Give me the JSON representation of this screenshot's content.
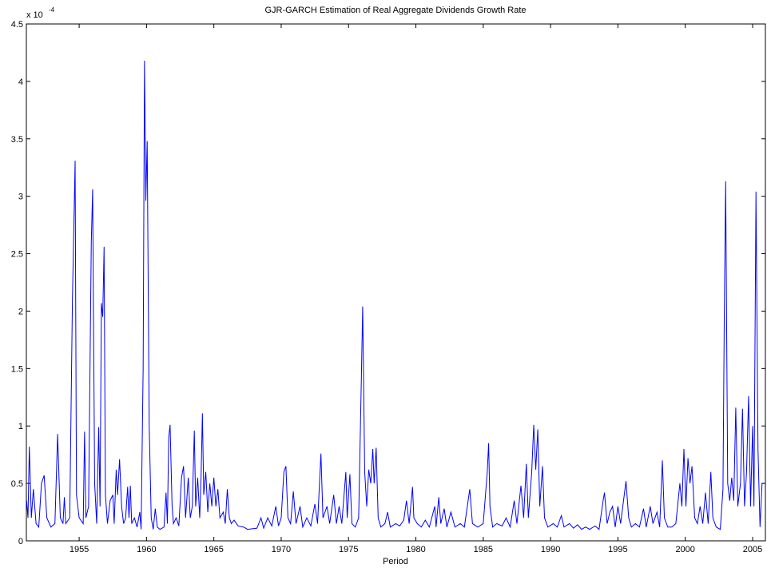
{
  "chart_data": {
    "type": "line",
    "title": "GJR-GARCH Estimation of Real Aggregate Dividends Growth Rate",
    "x_label": "Period",
    "y_multiplier_base": "x 10",
    "y_multiplier_exponent": "-4",
    "color": "#0000ff",
    "xlim": [
      1951.08,
      2005.95
    ],
    "ylim": [
      0,
      4.5
    ],
    "xticks": [
      1955,
      1960,
      1965,
      1970,
      1975,
      1980,
      1985,
      1990,
      1995,
      2000,
      2005
    ],
    "yticks": [
      0,
      0.5,
      1,
      1.5,
      2,
      2.5,
      3,
      3.5,
      4,
      4.5
    ],
    "x": [
      1951.1,
      1951.2,
      1951.3,
      1951.45,
      1951.6,
      1951.8,
      1952.0,
      1952.2,
      1952.4,
      1952.6,
      1952.9,
      1953.2,
      1953.4,
      1953.6,
      1953.8,
      1953.9,
      1954.0,
      1954.3,
      1954.5,
      1954.7,
      1954.8,
      1955.0,
      1955.3,
      1955.4,
      1955.5,
      1955.7,
      1955.9,
      1956.0,
      1956.15,
      1956.3,
      1956.45,
      1956.55,
      1956.65,
      1956.75,
      1956.85,
      1956.95,
      1957.1,
      1957.3,
      1957.5,
      1957.6,
      1957.75,
      1957.85,
      1958.0,
      1958.15,
      1958.3,
      1958.45,
      1958.6,
      1958.7,
      1958.8,
      1958.9,
      1959.1,
      1959.3,
      1959.5,
      1959.6,
      1959.75,
      1959.85,
      1959.95,
      1960.05,
      1960.2,
      1960.35,
      1960.5,
      1960.65,
      1960.8,
      1961.0,
      1961.3,
      1961.45,
      1961.55,
      1961.65,
      1961.75,
      1961.9,
      1962.0,
      1962.2,
      1962.4,
      1962.6,
      1962.75,
      1962.9,
      1963.1,
      1963.25,
      1963.4,
      1963.55,
      1963.65,
      1963.8,
      1963.95,
      1964.05,
      1964.15,
      1964.25,
      1964.4,
      1964.55,
      1964.7,
      1964.85,
      1965.0,
      1965.15,
      1965.3,
      1965.45,
      1965.7,
      1965.85,
      1966.0,
      1966.15,
      1966.3,
      1966.5,
      1966.8,
      1967.2,
      1967.5,
      1968.2,
      1968.5,
      1968.7,
      1969.0,
      1969.3,
      1969.6,
      1969.8,
      1970.0,
      1970.2,
      1970.35,
      1970.5,
      1970.7,
      1970.9,
      1971.1,
      1971.4,
      1971.6,
      1971.9,
      1972.2,
      1972.5,
      1972.7,
      1972.95,
      1973.1,
      1973.4,
      1973.6,
      1973.9,
      1974.1,
      1974.3,
      1974.5,
      1974.8,
      1974.9,
      1975.1,
      1975.25,
      1975.5,
      1975.75,
      1975.95,
      1976.05,
      1976.2,
      1976.35,
      1976.5,
      1976.65,
      1976.8,
      1976.9,
      1977.05,
      1977.2,
      1977.4,
      1977.7,
      1977.9,
      1978.1,
      1978.5,
      1978.8,
      1979.1,
      1979.3,
      1979.5,
      1979.75,
      1979.85,
      1980.1,
      1980.4,
      1980.7,
      1981.0,
      1981.4,
      1981.5,
      1981.7,
      1981.85,
      1982.1,
      1982.3,
      1982.6,
      1982.9,
      1983.3,
      1983.6,
      1984.0,
      1984.2,
      1984.6,
      1985.0,
      1985.3,
      1985.4,
      1985.5,
      1985.7,
      1986.0,
      1986.4,
      1986.7,
      1987.0,
      1987.3,
      1987.5,
      1987.8,
      1988.0,
      1988.2,
      1988.35,
      1988.6,
      1988.75,
      1988.9,
      1989.05,
      1989.2,
      1989.4,
      1989.55,
      1989.8,
      1990.2,
      1990.5,
      1990.8,
      1991.0,
      1991.4,
      1991.7,
      1992.0,
      1992.3,
      1992.6,
      1992.9,
      1993.3,
      1993.6,
      1993.9,
      1994.0,
      1994.2,
      1994.4,
      1994.6,
      1994.8,
      1995.0,
      1995.2,
      1995.6,
      1995.8,
      1996.0,
      1996.3,
      1996.6,
      1996.9,
      1997.1,
      1997.4,
      1997.6,
      1997.9,
      1998.1,
      1998.3,
      1998.45,
      1998.7,
      1999.0,
      1999.3,
      1999.6,
      1999.75,
      1999.9,
      2000.05,
      2000.2,
      2000.35,
      2000.5,
      2000.7,
      2000.9,
      2001.1,
      2001.3,
      2001.5,
      2001.7,
      2001.9,
      2002.05,
      2002.3,
      2002.6,
      2002.8,
      2002.9,
      2003.0,
      2003.15,
      2003.3,
      2003.45,
      2003.6,
      2003.75,
      2003.9,
      2004.1,
      2004.25,
      2004.4,
      2004.55,
      2004.7,
      2004.85,
      2005.0,
      2005.1,
      2005.25,
      2005.4,
      2005.55,
      2005.7,
      2005.95
    ],
    "values": [
      0.35,
      0.2,
      0.82,
      0.2,
      0.45,
      0.15,
      0.12,
      0.5,
      0.57,
      0.2,
      0.12,
      0.15,
      0.93,
      0.2,
      0.15,
      0.38,
      0.15,
      0.2,
      2.1,
      3.31,
      0.4,
      0.2,
      0.15,
      0.95,
      0.2,
      0.3,
      2.6,
      3.06,
      0.5,
      0.15,
      0.99,
      0.3,
      2.07,
      1.95,
      2.56,
      0.4,
      0.15,
      0.35,
      0.4,
      0.15,
      0.62,
      0.4,
      0.71,
      0.3,
      0.15,
      0.2,
      0.47,
      0.2,
      0.48,
      0.15,
      0.2,
      0.12,
      0.25,
      0.1,
      1.5,
      4.18,
      2.96,
      3.48,
      1.0,
      0.2,
      0.1,
      0.28,
      0.12,
      0.1,
      0.12,
      0.42,
      0.15,
      0.9,
      1.01,
      0.3,
      0.15,
      0.2,
      0.13,
      0.55,
      0.65,
      0.2,
      0.55,
      0.2,
      0.3,
      0.96,
      0.3,
      0.55,
      0.2,
      0.55,
      1.11,
      0.4,
      0.6,
      0.25,
      0.5,
      0.3,
      0.55,
      0.3,
      0.45,
      0.2,
      0.25,
      0.15,
      0.45,
      0.2,
      0.15,
      0.18,
      0.13,
      0.12,
      0.1,
      0.11,
      0.2,
      0.11,
      0.2,
      0.13,
      0.3,
      0.13,
      0.2,
      0.6,
      0.65,
      0.2,
      0.15,
      0.43,
      0.15,
      0.3,
      0.12,
      0.2,
      0.13,
      0.32,
      0.15,
      0.76,
      0.2,
      0.3,
      0.15,
      0.4,
      0.15,
      0.3,
      0.15,
      0.6,
      0.2,
      0.58,
      0.15,
      0.12,
      0.2,
      1.4,
      2.04,
      0.6,
      0.3,
      0.62,
      0.5,
      0.8,
      0.5,
      0.81,
      0.2,
      0.12,
      0.15,
      0.25,
      0.12,
      0.15,
      0.13,
      0.18,
      0.35,
      0.15,
      0.47,
      0.2,
      0.15,
      0.12,
      0.18,
      0.12,
      0.3,
      0.12,
      0.38,
      0.15,
      0.28,
      0.12,
      0.25,
      0.12,
      0.15,
      0.12,
      0.45,
      0.15,
      0.12,
      0.15,
      0.6,
      0.85,
      0.3,
      0.12,
      0.15,
      0.13,
      0.2,
      0.12,
      0.35,
      0.15,
      0.48,
      0.2,
      0.67,
      0.2,
      0.6,
      1.01,
      0.62,
      0.97,
      0.3,
      0.65,
      0.2,
      0.12,
      0.15,
      0.12,
      0.22,
      0.12,
      0.15,
      0.11,
      0.14,
      0.1,
      0.12,
      0.1,
      0.13,
      0.1,
      0.35,
      0.42,
      0.15,
      0.25,
      0.3,
      0.12,
      0.3,
      0.15,
      0.52,
      0.2,
      0.12,
      0.15,
      0.12,
      0.28,
      0.12,
      0.3,
      0.15,
      0.25,
      0.12,
      0.7,
      0.2,
      0.12,
      0.12,
      0.15,
      0.5,
      0.3,
      0.8,
      0.3,
      0.72,
      0.5,
      0.65,
      0.2,
      0.15,
      0.3,
      0.15,
      0.42,
      0.15,
      0.6,
      0.2,
      0.12,
      0.1,
      0.45,
      2.0,
      3.13,
      0.5,
      0.35,
      0.55,
      0.35,
      1.16,
      0.3,
      0.5,
      1.15,
      0.3,
      0.6,
      1.26,
      0.3,
      1.0,
      0.3,
      3.04,
      0.8,
      0.12,
      0.5,
      0.5
    ]
  }
}
